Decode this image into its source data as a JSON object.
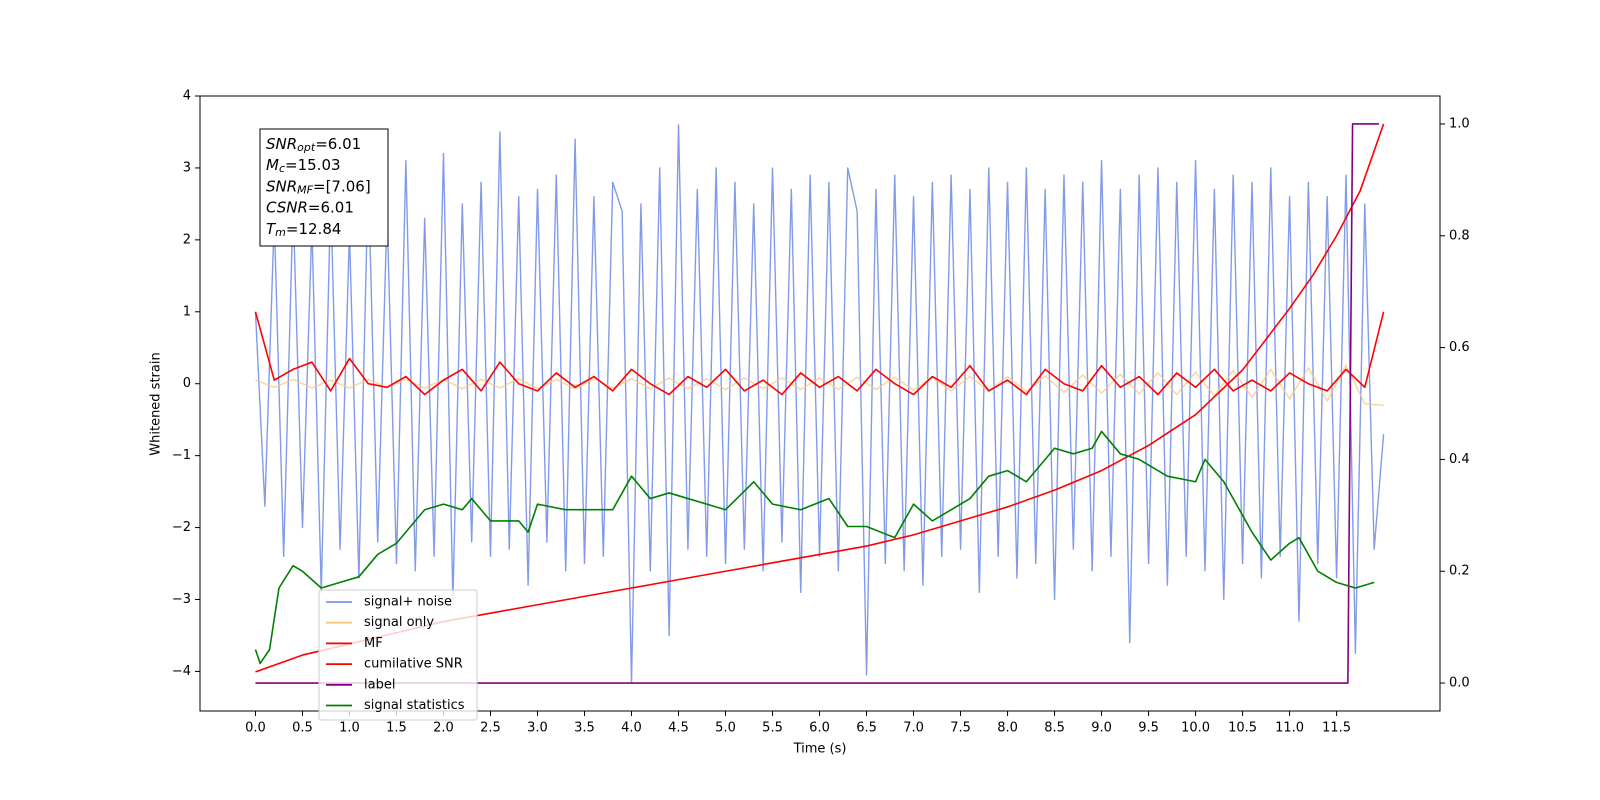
{
  "chart_data": {
    "type": "line",
    "xlabel": "Time (s)",
    "ylabel": "Whitened strain",
    "xlim": [
      -0.59,
      12.6
    ],
    "ylim": [
      -4.55,
      4.0
    ],
    "y2lim": [
      -0.05,
      1.05
    ],
    "xticks": [
      {
        "value": 0,
        "label": "0.0"
      },
      0.5,
      {
        "value": 1,
        "label": "1.0"
      },
      1.5,
      {
        "value": 2,
        "label": "2.0"
      },
      2.5,
      {
        "value": 3,
        "label": "3.0"
      },
      3.5,
      {
        "value": 4,
        "label": "4.0"
      },
      4.5,
      {
        "value": 5,
        "label": "5.0"
      },
      5.5,
      {
        "value": 6,
        "label": "6.0"
      },
      6.5,
      {
        "value": 7,
        "label": "7.0"
      },
      7.5,
      {
        "value": 8,
        "label": "8.0"
      },
      8.5,
      {
        "value": 9,
        "label": "9.0"
      },
      9.5,
      {
        "value": 10,
        "label": "10.0"
      },
      10.5,
      {
        "value": 11,
        "label": "11.0"
      },
      11.5
    ],
    "yticks": [
      {
        "value": -4,
        "label": "−4"
      },
      {
        "value": -3,
        "label": "−3"
      },
      {
        "value": -2,
        "label": "−2"
      },
      {
        "value": -1,
        "label": "−1"
      },
      0,
      1,
      2,
      3,
      4
    ],
    "y2ticks": [
      {
        "value": 0,
        "label": "0.0"
      },
      0.2,
      0.4,
      0.6,
      0.8,
      {
        "value": 1,
        "label": "1.0"
      }
    ],
    "legend": "lower left",
    "annotations": [
      {
        "main": "SNR",
        "sub": "opt",
        "rest": "=6.01"
      },
      {
        "main": "M",
        "sub": "c",
        "rest": "=15.03"
      },
      {
        "main": "SNR",
        "sub": "MF",
        "rest": "=[7.06]"
      },
      {
        "main": "CSNR",
        "rest": "=6.01"
      },
      {
        "main": "T",
        "sub": "m",
        "rest": "=12.84"
      }
    ],
    "series": [
      {
        "name": "signal+ noise",
        "color": "#7b96e8",
        "axis": "y",
        "x": [
          0,
          0.1,
          0.2,
          0.3,
          0.4,
          0.5,
          0.6,
          0.7,
          0.8,
          0.9,
          1,
          1.1,
          1.2,
          1.3,
          1.4,
          1.5,
          1.6,
          1.7,
          1.8,
          1.9,
          2,
          2.1,
          2.2,
          2.3,
          2.4,
          2.5,
          2.6,
          2.7,
          2.8,
          2.9,
          3,
          3.1,
          3.2,
          3.3,
          3.4,
          3.5,
          3.6,
          3.7,
          3.8,
          3.9,
          4,
          4.1,
          4.2,
          4.3,
          4.4,
          4.5,
          4.6,
          4.7,
          4.8,
          4.9,
          5,
          5.1,
          5.2,
          5.3,
          5.4,
          5.5,
          5.6,
          5.7,
          5.8,
          5.9,
          6,
          6.1,
          6.2,
          6.3,
          6.4,
          6.5,
          6.6,
          6.7,
          6.8,
          6.9,
          7,
          7.1,
          7.2,
          7.3,
          7.4,
          7.5,
          7.6,
          7.7,
          7.8,
          7.9,
          8,
          8.1,
          8.2,
          8.3,
          8.4,
          8.5,
          8.6,
          8.7,
          8.8,
          8.9,
          9,
          9.1,
          9.2,
          9.3,
          9.4,
          9.5,
          9.6,
          9.7,
          9.8,
          9.9,
          10,
          10.1,
          10.2,
          10.3,
          10.4,
          10.5,
          10.6,
          10.7,
          10.8,
          10.9,
          11,
          11.1,
          11.2,
          11.3,
          11.4,
          11.5,
          11.6,
          11.7,
          11.8,
          11.9,
          12
        ],
        "values": [
          1.0,
          -1.7,
          2.3,
          -2.4,
          2.5,
          -2.0,
          2.2,
          -2.9,
          2.6,
          -2.3,
          2.1,
          -2.7,
          2.9,
          -2.2,
          2.4,
          -2.5,
          3.1,
          -2.6,
          2.3,
          -2.4,
          3.2,
          -3.0,
          2.5,
          -2.2,
          2.8,
          -2.4,
          3.5,
          -2.3,
          2.6,
          -2.8,
          2.7,
          -2.2,
          2.9,
          -2.6,
          3.4,
          -2.5,
          2.6,
          -2.4,
          2.8,
          2.4,
          -4.15,
          2.5,
          -2.6,
          3.0,
          -3.5,
          3.6,
          -2.3,
          2.7,
          -2.4,
          3.0,
          -2.5,
          2.8,
          -2.3,
          2.5,
          -2.6,
          3.0,
          -2.2,
          2.7,
          -2.9,
          2.9,
          -2.4,
          2.8,
          -2.6,
          3.0,
          2.4,
          -4.05,
          2.7,
          -2.5,
          2.9,
          -2.6,
          2.6,
          -2.8,
          2.8,
          -2.4,
          2.9,
          -2.3,
          2.7,
          -2.9,
          3.0,
          -2.4,
          2.8,
          -2.7,
          3.0,
          -2.5,
          2.7,
          -3.0,
          2.9,
          -2.3,
          2.8,
          -2.6,
          3.1,
          -2.4,
          2.7,
          -3.6,
          2.9,
          -2.5,
          3.0,
          -2.8,
          2.8,
          -2.4,
          3.1,
          -2.6,
          2.7,
          -3.0,
          2.9,
          -2.5,
          2.8,
          -2.7,
          3.0,
          -2.4,
          2.6,
          -3.3,
          2.8,
          -2.5,
          2.6,
          -2.7,
          2.9,
          -3.75,
          2.5,
          -2.3,
          -0.7
        ]
      },
      {
        "name": "signal only",
        "color": "#f8c77a",
        "axis": "y",
        "x": [
          0,
          0.2,
          0.4,
          0.6,
          0.8,
          1,
          1.2,
          1.4,
          1.6,
          1.8,
          2,
          2.2,
          2.4,
          2.6,
          2.8,
          3,
          3.2,
          3.4,
          3.6,
          3.8,
          4,
          4.2,
          4.4,
          4.6,
          4.8,
          5,
          5.2,
          5.4,
          5.6,
          5.8,
          6,
          6.2,
          6.4,
          6.6,
          6.8,
          7,
          7.2,
          7.4,
          7.6,
          7.8,
          8,
          8.2,
          8.4,
          8.6,
          8.8,
          9,
          9.2,
          9.4,
          9.6,
          9.8,
          10,
          10.2,
          10.4,
          10.6,
          10.8,
          11,
          11.2,
          11.4,
          11.6,
          11.8,
          12
        ],
        "values": [
          0.05,
          -0.05,
          0.06,
          -0.06,
          0.05,
          -0.06,
          0.06,
          -0.05,
          0.06,
          -0.06,
          0.06,
          -0.07,
          0.06,
          -0.06,
          0.07,
          -0.07,
          0.06,
          -0.07,
          0.07,
          -0.06,
          0.07,
          -0.07,
          0.08,
          -0.07,
          0.07,
          -0.08,
          0.08,
          -0.07,
          0.08,
          -0.08,
          0.08,
          -0.08,
          0.09,
          -0.08,
          0.09,
          -0.09,
          0.09,
          -0.1,
          0.1,
          -0.1,
          0.1,
          -0.11,
          0.11,
          -0.12,
          0.12,
          -0.13,
          0.13,
          -0.14,
          0.15,
          -0.15,
          0.16,
          -0.17,
          0.18,
          -0.19,
          0.2,
          -0.21,
          0.22,
          -0.24,
          0.26,
          -0.28,
          -0.3
        ]
      },
      {
        "name": "MF",
        "color": "#ff0000",
        "axis": "y",
        "x": [
          0,
          0.2,
          0.4,
          0.6,
          0.8,
          1,
          1.2,
          1.4,
          1.6,
          1.8,
          2,
          2.2,
          2.4,
          2.6,
          2.8,
          3,
          3.2,
          3.4,
          3.6,
          3.8,
          4,
          4.2,
          4.4,
          4.6,
          4.8,
          5,
          5.2,
          5.4,
          5.6,
          5.8,
          6,
          6.2,
          6.4,
          6.6,
          6.8,
          7,
          7.2,
          7.4,
          7.6,
          7.8,
          8,
          8.2,
          8.4,
          8.6,
          8.8,
          9,
          9.2,
          9.4,
          9.6,
          9.8,
          10,
          10.2,
          10.4,
          10.6,
          10.8,
          11,
          11.2,
          11.4,
          11.6,
          11.8,
          12
        ],
        "values": [
          1.0,
          0.05,
          0.2,
          0.3,
          -0.1,
          0.35,
          0.0,
          -0.05,
          0.1,
          -0.15,
          0.05,
          0.2,
          -0.1,
          0.3,
          0.0,
          -0.1,
          0.15,
          -0.05,
          0.1,
          -0.1,
          0.2,
          0.0,
          -0.15,
          0.1,
          -0.05,
          0.2,
          -0.1,
          0.05,
          -0.15,
          0.15,
          -0.05,
          0.1,
          -0.1,
          0.2,
          0.0,
          -0.15,
          0.1,
          -0.05,
          0.25,
          -0.1,
          0.05,
          -0.15,
          0.2,
          0.0,
          -0.1,
          0.25,
          -0.05,
          0.1,
          -0.15,
          0.15,
          -0.05,
          0.2,
          -0.1,
          0.05,
          -0.1,
          0.15,
          0.0,
          -0.1,
          0.2,
          -0.05,
          1.0
        ]
      },
      {
        "name": "cumilative SNR",
        "color": "#ff0000",
        "axis": "y2",
        "x": [
          0,
          0.5,
          1,
          1.5,
          2,
          2.5,
          3,
          3.5,
          4,
          4.5,
          5,
          5.5,
          6,
          6.5,
          7,
          7.5,
          8,
          8.5,
          9,
          9.5,
          10,
          10.5,
          11,
          11.25,
          11.5,
          11.75,
          12
        ],
        "values": [
          0.02,
          0.05,
          0.07,
          0.09,
          0.11,
          0.125,
          0.14,
          0.155,
          0.17,
          0.185,
          0.2,
          0.215,
          0.23,
          0.245,
          0.265,
          0.29,
          0.315,
          0.345,
          0.38,
          0.425,
          0.48,
          0.56,
          0.67,
          0.73,
          0.8,
          0.88,
          1.0
        ]
      },
      {
        "name": "label",
        "color": "#800080",
        "axis": "y2",
        "x": [
          0,
          11.62,
          11.67,
          11.95
        ],
        "values": [
          0,
          0,
          1,
          1
        ]
      },
      {
        "name": "signal statistics",
        "color": "#008000",
        "axis": "y2",
        "x": [
          0,
          0.05,
          0.15,
          0.25,
          0.4,
          0.5,
          0.7,
          0.9,
          1.1,
          1.3,
          1.5,
          1.7,
          1.8,
          2,
          2.2,
          2.3,
          2.5,
          2.8,
          2.9,
          3,
          3.3,
          3.5,
          3.8,
          4,
          4.2,
          4.4,
          4.6,
          4.8,
          5,
          5.3,
          5.5,
          5.8,
          6.1,
          6.3,
          6.5,
          6.8,
          7,
          7.2,
          7.5,
          7.6,
          7.8,
          8,
          8.2,
          8.5,
          8.7,
          8.9,
          9,
          9.2,
          9.4,
          9.7,
          10,
          10.1,
          10.3,
          10.6,
          10.8,
          11,
          11.1,
          11.3,
          11.5,
          11.7,
          11.9
        ],
        "values": [
          0.06,
          0.035,
          0.06,
          0.17,
          0.21,
          0.2,
          0.17,
          0.18,
          0.19,
          0.23,
          0.25,
          0.29,
          0.31,
          0.32,
          0.31,
          0.33,
          0.29,
          0.29,
          0.27,
          0.32,
          0.31,
          0.31,
          0.31,
          0.37,
          0.33,
          0.34,
          0.33,
          0.32,
          0.31,
          0.36,
          0.32,
          0.31,
          0.33,
          0.28,
          0.28,
          0.26,
          0.32,
          0.29,
          0.32,
          0.33,
          0.37,
          0.38,
          0.36,
          0.42,
          0.41,
          0.42,
          0.45,
          0.41,
          0.4,
          0.37,
          0.36,
          0.4,
          0.36,
          0.27,
          0.22,
          0.25,
          0.26,
          0.2,
          0.18,
          0.17,
          0.18
        ]
      }
    ]
  }
}
